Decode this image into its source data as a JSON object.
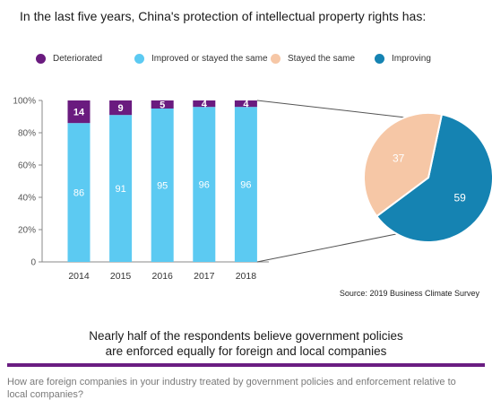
{
  "title": "In the last five years, China's protection of intellectual property rights has:",
  "legend": [
    {
      "label": "Deteriorated",
      "color": "#6a1b7f"
    },
    {
      "label": "Improved or stayed the same",
      "color": "#5ccaf2"
    },
    {
      "label": "Stayed the same",
      "color": "#f6c7a6"
    },
    {
      "label": "Improving",
      "color": "#1583b2"
    }
  ],
  "chart_data": [
    {
      "type": "bar",
      "stacked": true,
      "categories": [
        "2014",
        "2015",
        "2016",
        "2017",
        "2018"
      ],
      "series": [
        {
          "name": "Improved or stayed the same",
          "values": [
            86,
            91,
            95,
            96,
            96
          ],
          "color": "#5ccaf2"
        },
        {
          "name": "Deteriorated",
          "values": [
            14,
            9,
            5,
            4,
            4
          ],
          "color": "#6a1b7f"
        }
      ],
      "yticks": [
        "0",
        "20%",
        "40%",
        "60%",
        "80%",
        "100%"
      ],
      "ylim": [
        0,
        100
      ],
      "grid": false
    },
    {
      "type": "pie",
      "slices": [
        {
          "name": "Stayed the same",
          "value": 37,
          "color": "#f6c7a6"
        },
        {
          "name": "Improving",
          "value": 59,
          "color": "#1583b2"
        }
      ]
    }
  ],
  "source": "Source: 2019 Business Climate Survey",
  "subhead": [
    "Nearly half of the respondents believe government policies",
    "are enforced equally for foreign and local companies"
  ],
  "question": "How are foreign companies in your industry treated by government policies and enforcement relative to local companies?"
}
